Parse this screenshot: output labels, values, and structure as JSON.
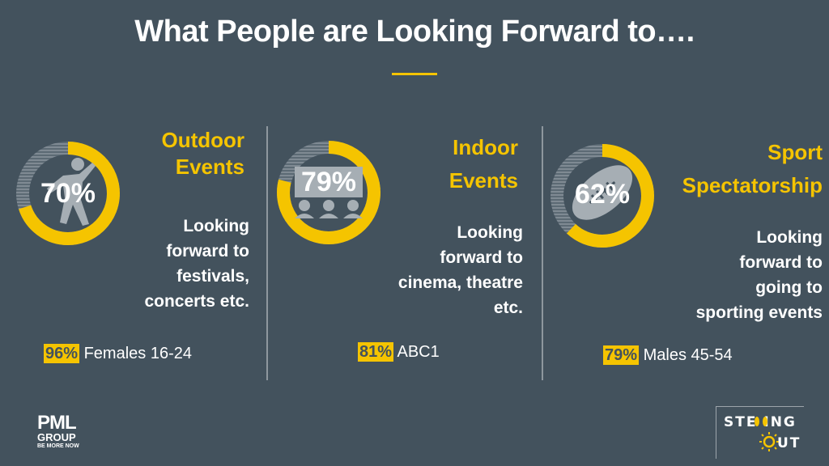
{
  "title": "What People are Looking Forward to….",
  "accent_color": "#f5c400",
  "background_color": "#43525d",
  "panels": [
    {
      "percent_label": "70%",
      "percent": 70,
      "icon": "dancing-person-icon",
      "heading_line1": "Outdoor",
      "heading_line2": "Events",
      "desc_lines": [
        "Looking",
        "forward to",
        "festivals,",
        "concerts etc."
      ],
      "stat_badge": "96%",
      "stat_text": "Females 16-24"
    },
    {
      "percent_label": "79%",
      "percent": 79,
      "icon": "cinema-audience-icon",
      "heading_line1": "Indoor",
      "heading_line2": "Events",
      "desc_lines": [
        "Looking",
        "forward to",
        "cinema, theatre",
        "etc."
      ],
      "stat_badge": "81%",
      "stat_text": "ABC1"
    },
    {
      "percent_label": "62%",
      "percent": 62,
      "icon": "american-football-icon",
      "heading_line1": "Sport",
      "heading_line2": "Spectatorship",
      "desc_lines": [
        "Looking",
        "forward to",
        "going to",
        "sporting events"
      ],
      "stat_badge": "79%",
      "stat_text": "Males 45-54"
    }
  ],
  "footer": {
    "pml_logo_line1": "PML",
    "pml_logo_line2": "GROUP",
    "pml_logo_line3": "BE MORE NOW",
    "stepping_out_line1": "STE  ING",
    "stepping_out_line2": "UT"
  }
}
